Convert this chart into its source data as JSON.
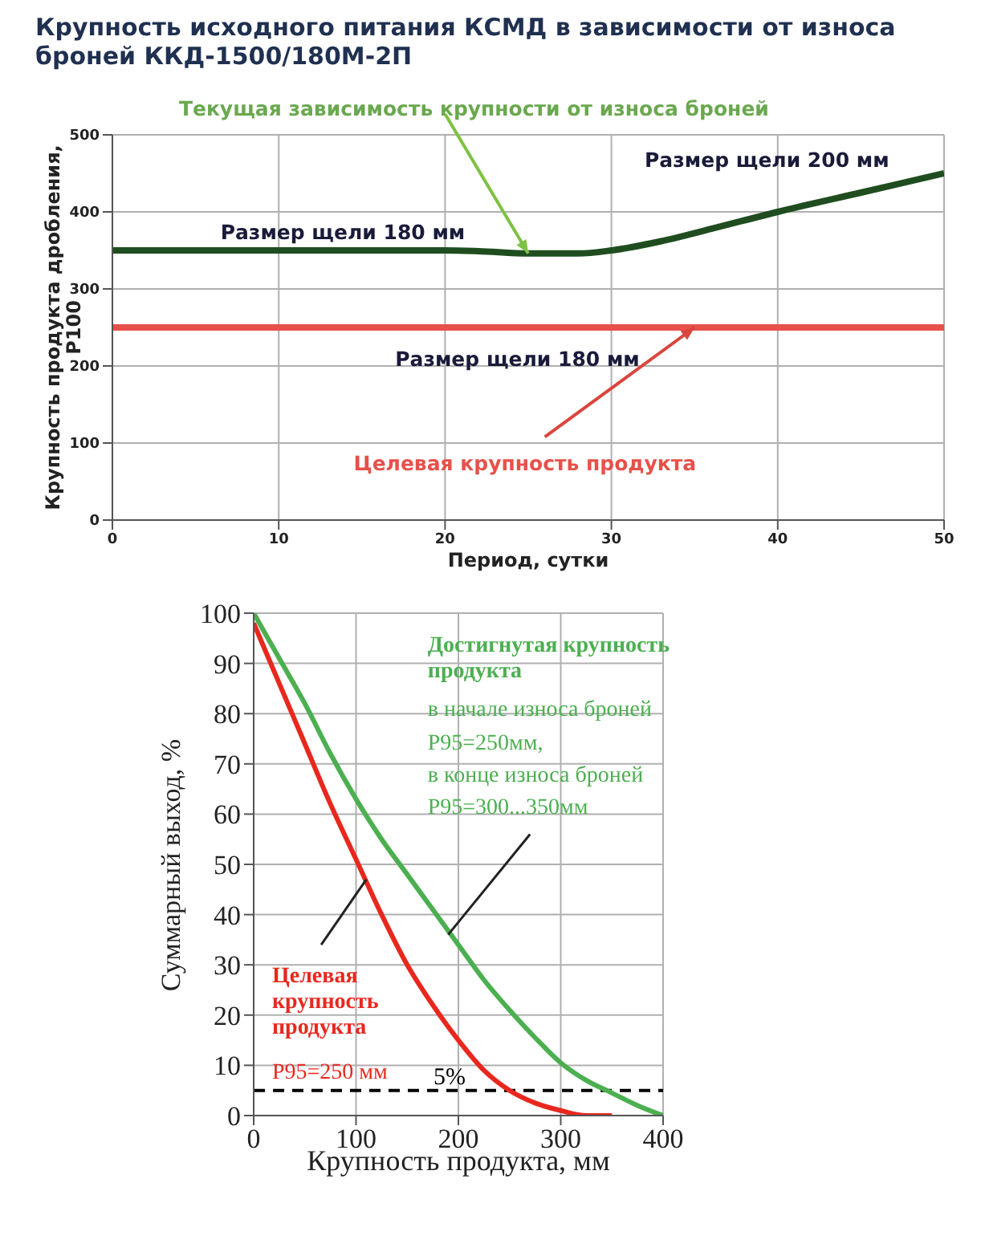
{
  "chart_data": [
    {
      "type": "line",
      "title": "Крупность исходного питания КСМД в зависимости от износа броней ККД-1500/180М-2П",
      "xlabel": "Период, сутки",
      "ylabel": "Крупность продукта дробления, P100",
      "xlim": [
        0,
        50
      ],
      "xticks": [
        0,
        10,
        20,
        30,
        40,
        50
      ],
      "ylim": [
        0,
        500
      ],
      "yticks": [
        0,
        100,
        200,
        300,
        400,
        500
      ],
      "grid": true,
      "marker": "none",
      "line_style": "solid",
      "series": [
        {
          "color": "#1f4d1f",
          "x": [
            0,
            10,
            20,
            22,
            25,
            28,
            30,
            33,
            36,
            40,
            45,
            50
          ],
          "values": [
            350,
            350,
            350,
            349,
            346,
            346,
            350,
            362,
            378,
            400,
            425,
            450
          ]
        }
      ],
      "ref_lines": [
        {
          "axis": "y",
          "value": 250,
          "color": "#e8504a"
        }
      ],
      "annotations": [
        {
          "text": "Текущая зависимость крупности от износа броней",
          "x": 25,
          "y": 346
        },
        "Размер щели 180 мм",
        "Размер щели 200 мм",
        "Размер щели 180 мм",
        {
          "text": "Целевая крупность продукта",
          "x": 35,
          "y": 250
        }
      ]
    },
    {
      "type": "line",
      "xlabel": "Крупность продукта, мм",
      "ylabel": "Суммарный выход, %",
      "xlim": [
        0,
        400
      ],
      "xticks": [
        0,
        100,
        200,
        300,
        400
      ],
      "ylim": [
        0,
        100
      ],
      "yticks": [
        0,
        10,
        20,
        30,
        40,
        50,
        60,
        70,
        80,
        90,
        100
      ],
      "grid": true,
      "marker": "none",
      "line_style": "solid",
      "series": [
        {
          "color": "#4caf50",
          "x": [
            0,
            25,
            50,
            75,
            100,
            125,
            150,
            175,
            200,
            225,
            250,
            275,
            300,
            325,
            350,
            375,
            400
          ],
          "values": [
            100,
            91,
            82,
            72,
            63,
            55,
            48,
            41,
            34,
            27,
            21,
            15.5,
            10.5,
            7,
            4.5,
            2,
            0
          ]
        },
        {
          "color": "#e8281e",
          "x": [
            0,
            25,
            50,
            75,
            100,
            125,
            150,
            175,
            200,
            225,
            250,
            275,
            300,
            325,
            350
          ],
          "values": [
            98,
            86,
            74,
            62,
            51,
            40,
            30,
            22,
            15,
            9,
            5,
            2.5,
            1,
            0,
            0
          ]
        }
      ],
      "ref_lines": [
        {
          "axis": "y",
          "value": 5,
          "label": "5%",
          "color": "#000000",
          "line_style": "dashed"
        }
      ],
      "annotations": [
        "Достигнутая крупность продукта",
        "в начале износа броней",
        "P95=250мм,",
        "в конце износа броней",
        {
          "text": "P95=300...350мм",
          "x": 190,
          "y": 36
        },
        {
          "text": "Целевая крупность продукта",
          "x": 110,
          "y": 47
        },
        "P95=250 мм"
      ]
    }
  ]
}
